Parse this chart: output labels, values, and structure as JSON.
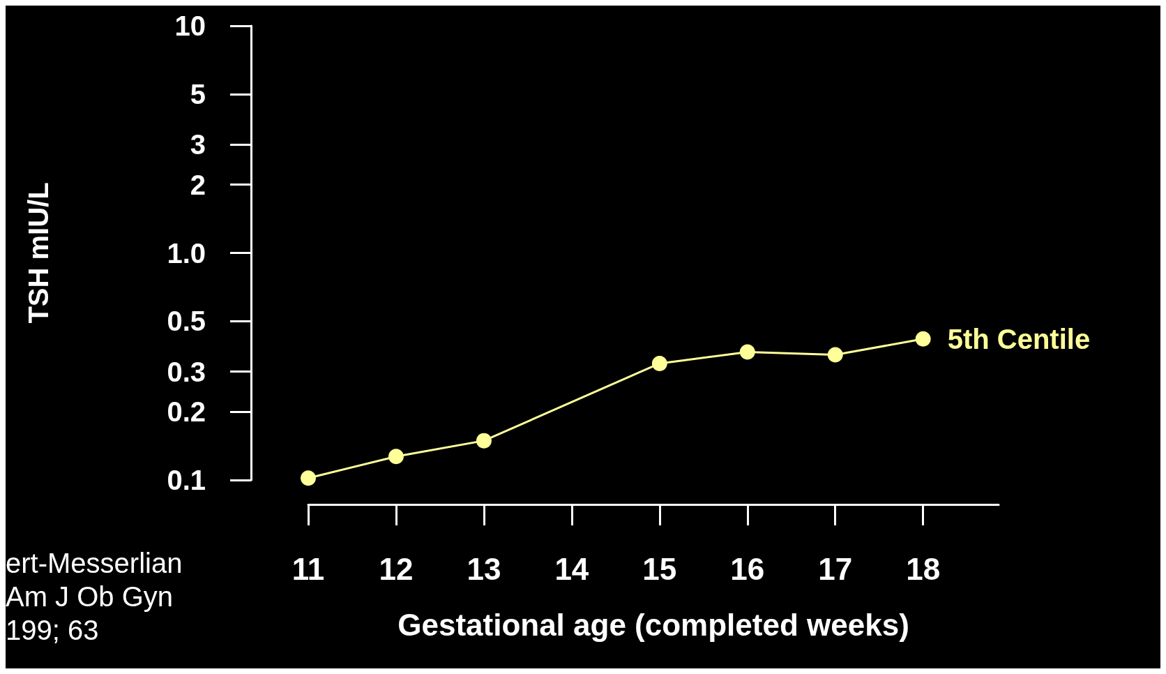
{
  "chart_data": {
    "type": "line",
    "xlabel": "Gestational age (completed weeks)",
    "ylabel": "TSH mIU/L",
    "x": [
      11,
      12,
      13,
      15,
      16,
      17,
      18
    ],
    "series": [
      {
        "name": "5th Centile",
        "color": "#ffff99",
        "values": [
          0.102,
          0.127,
          0.149,
          0.326,
          0.366,
          0.356,
          0.418
        ]
      }
    ],
    "xlim": [
      11,
      18.86
    ],
    "xticks": [
      11,
      12,
      13,
      14,
      15,
      16,
      17,
      18
    ],
    "ylim": [
      0.1,
      10
    ],
    "yticks": [
      0.1,
      0.2,
      0.3,
      0.5,
      {
        "value": 1,
        "label": "1.0"
      },
      2,
      3,
      5,
      10
    ],
    "log": "y",
    "grid": false,
    "legend": false,
    "marker": "circle",
    "line_style": "solid",
    "annotations": [
      "ert-Messerlian\nAm J Ob Gyn\n199; 63"
    ]
  }
}
